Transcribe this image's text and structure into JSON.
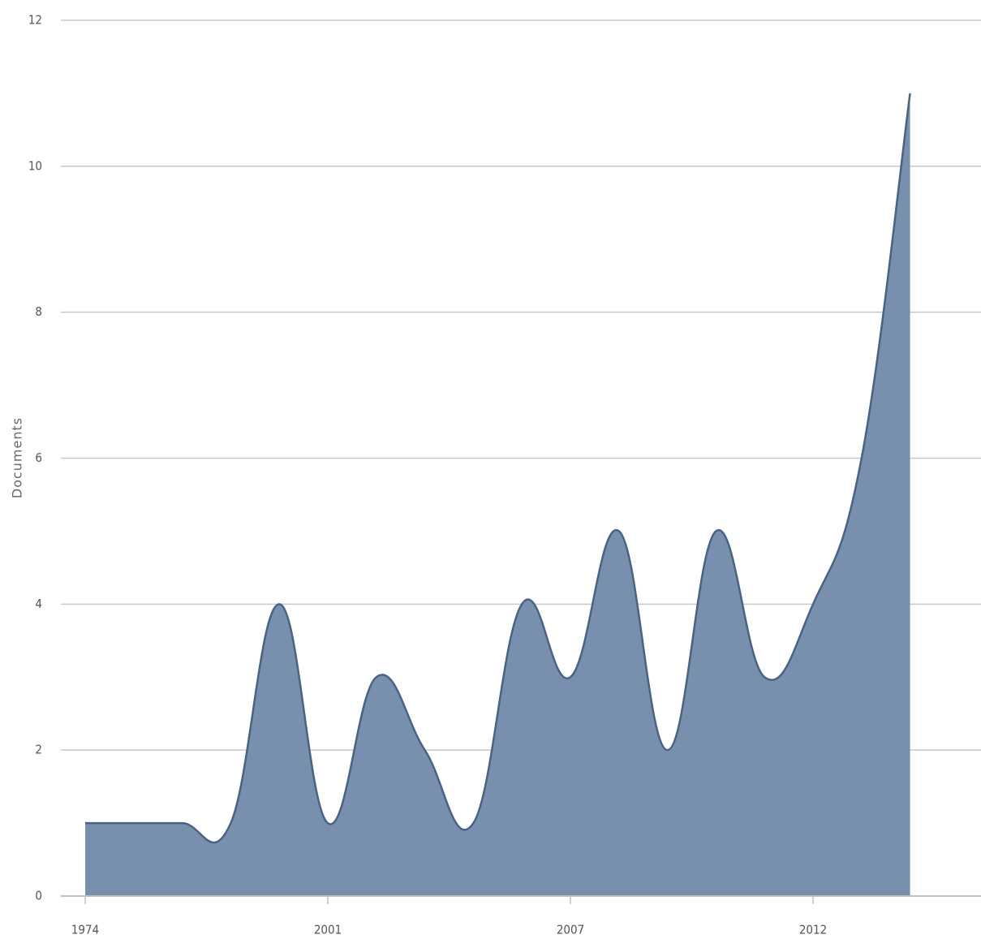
{
  "chart_data": {
    "type": "area",
    "y_label": "Documents",
    "categories": [
      "1974",
      null,
      null,
      null,
      null,
      "2001",
      null,
      null,
      null,
      null,
      "2007",
      null,
      null,
      null,
      null,
      "2012",
      null,
      null
    ],
    "series": [
      {
        "name": "Documents",
        "color": "#7890ad",
        "values": [
          1,
          1,
          1,
          1,
          4,
          1,
          3,
          2,
          1,
          4,
          3,
          5,
          2,
          5,
          3,
          4,
          6,
          11
        ]
      }
    ],
    "ylim": [
      0,
      12
    ],
    "yticks": [
      0,
      2,
      4,
      6,
      8,
      10,
      12
    ],
    "grid": true
  }
}
